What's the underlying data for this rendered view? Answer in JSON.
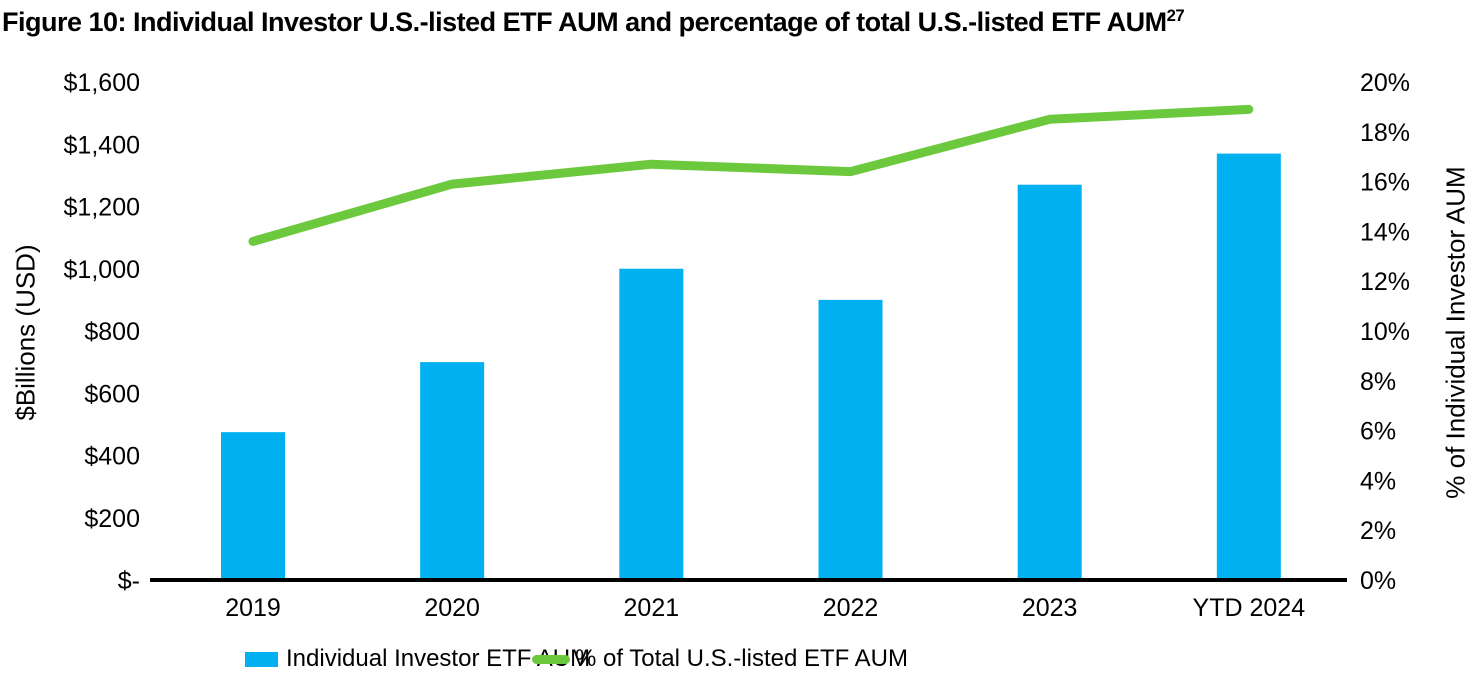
{
  "figure": {
    "title": "Figure 10: Individual Investor U.S.-listed ETF AUM and percentage of total U.S.-listed ETF AUM",
    "title_superscript": "27"
  },
  "chart_data": {
    "type": "combo-bar-line",
    "categories": [
      "2019",
      "2020",
      "2021",
      "2022",
      "2023",
      "YTD 2024"
    ],
    "series": [
      {
        "name": "Individual Investor ETF AUM",
        "type": "bar",
        "axis": "left",
        "color": "#00B0F0",
        "values": [
          475,
          700,
          1000,
          900,
          1270,
          1370
        ]
      },
      {
        "name": "% of Total U.S.-listed ETF AUM",
        "type": "line",
        "axis": "right",
        "color": "#6CC93E",
        "values": [
          13.6,
          15.9,
          16.7,
          16.4,
          18.5,
          18.9
        ]
      }
    ],
    "left_axis": {
      "label": "$Billions (USD)",
      "min": 0,
      "max": 1600,
      "step": 200,
      "tick_labels": [
        "$-",
        "$200",
        "$400",
        "$600",
        "$800",
        "$1,000",
        "$1,200",
        "$1,400",
        "$1,600"
      ]
    },
    "right_axis": {
      "label": "% of Individual Investor AUM",
      "min": 0,
      "max": 20,
      "step": 2,
      "tick_labels": [
        "0%",
        "2%",
        "4%",
        "6%",
        "8%",
        "10%",
        "12%",
        "14%",
        "16%",
        "18%",
        "20%"
      ]
    },
    "grid": false,
    "legend_position": "bottom",
    "legend": [
      {
        "label": "Individual Investor ETF AUM",
        "color": "#00B0F0",
        "marker": "bar-swatch"
      },
      {
        "label": "% of Total U.S.-listed ETF AUM",
        "color": "#6CC93E",
        "marker": "line-swatch"
      }
    ],
    "axis_color": "#000000"
  }
}
